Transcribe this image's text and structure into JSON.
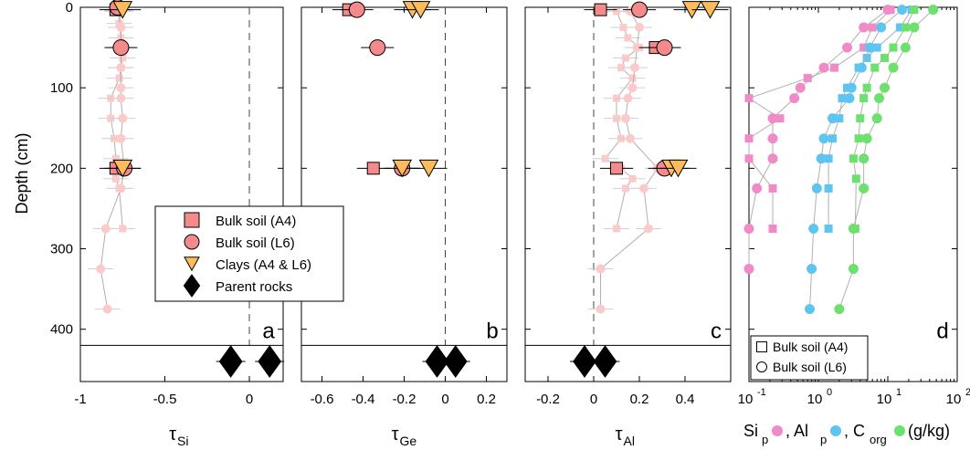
{
  "figure": {
    "ylabel": "Depth (cm)",
    "y_ticks": [
      0,
      100,
      200,
      300,
      400
    ],
    "colors": {
      "bulk_a4": "#f48a8c",
      "bulk_l6": "#f48a8c",
      "clays": "#fcbc5c",
      "profile_light": "#fbcaca",
      "si_p": "#f08ac8",
      "al_p": "#5ec4f0",
      "c_org": "#6ee06e",
      "gray_line": "#b0b0b0"
    }
  },
  "chart_data": [
    {
      "type": "scatter",
      "panel_letter": "a",
      "xlabel_symbol": "τ",
      "xlabel_sub": "Si",
      "xlim": [
        -1,
        0.2
      ],
      "ylim": [
        0,
        465
      ],
      "x_ticks": [
        -1,
        -0.5,
        0
      ],
      "x_tick_labels": [
        "-1",
        "-0.5",
        "0"
      ],
      "reference_x": 0,
      "bedrock_line_depth": 420,
      "profile_a4": [
        {
          "x": -0.76,
          "y": 5
        },
        {
          "x": -0.77,
          "y": 20
        },
        {
          "x": -0.76,
          "y": 38
        },
        {
          "x": -0.76,
          "y": 50
        },
        {
          "x": -0.75,
          "y": 63
        },
        {
          "x": -0.76,
          "y": 75
        },
        {
          "x": -0.77,
          "y": 88
        },
        {
          "x": -0.82,
          "y": 113
        },
        {
          "x": -0.82,
          "y": 138
        },
        {
          "x": -0.8,
          "y": 163
        },
        {
          "x": -0.79,
          "y": 188
        },
        {
          "x": -0.79,
          "y": 200
        },
        {
          "x": -0.79,
          "y": 213
        },
        {
          "x": -0.77,
          "y": 225
        },
        {
          "x": -0.75,
          "y": 275
        }
      ],
      "profile_l6": [
        {
          "x": -0.78,
          "y": 5
        },
        {
          "x": -0.76,
          "y": 25
        },
        {
          "x": -0.76,
          "y": 50
        },
        {
          "x": -0.76,
          "y": 75
        },
        {
          "x": -0.76,
          "y": 100
        },
        {
          "x": -0.76,
          "y": 113
        },
        {
          "x": -0.75,
          "y": 138
        },
        {
          "x": -0.76,
          "y": 163
        },
        {
          "x": -0.74,
          "y": 200
        },
        {
          "x": -0.76,
          "y": 225
        },
        {
          "x": -0.85,
          "y": 275
        },
        {
          "x": -0.88,
          "y": 325
        },
        {
          "x": -0.84,
          "y": 375
        }
      ],
      "bulk_a4": [
        {
          "x": -0.79,
          "y": 3
        },
        {
          "x": -0.79,
          "y": 200
        }
      ],
      "bulk_l6": [
        {
          "x": -0.78,
          "y": 0
        },
        {
          "x": -0.76,
          "y": 50
        },
        {
          "x": -0.74,
          "y": 200
        }
      ],
      "clays": [
        {
          "x": -0.75,
          "y": 3
        },
        {
          "x": -0.75,
          "y": 200
        }
      ],
      "parent_rocks": [
        {
          "x": -0.11,
          "y": 440
        },
        {
          "x": 0.12,
          "y": 440
        }
      ]
    },
    {
      "type": "scatter",
      "panel_letter": "b",
      "xlabel_symbol": "τ",
      "xlabel_sub": "Ge",
      "xlim": [
        -0.7,
        0.3
      ],
      "ylim": [
        0,
        465
      ],
      "x_ticks": [
        -0.6,
        -0.4,
        -0.2,
        0,
        0.2
      ],
      "x_tick_labels": [
        "-0.6",
        "-0.4",
        "-0.2",
        "0",
        "0.2"
      ],
      "reference_x": 0,
      "bedrock_line_depth": 420,
      "bulk_a4": [
        {
          "x": -0.47,
          "y": 3
        },
        {
          "x": -0.35,
          "y": 200
        }
      ],
      "bulk_l6": [
        {
          "x": -0.43,
          "y": 3
        },
        {
          "x": -0.33,
          "y": 50
        },
        {
          "x": -0.21,
          "y": 200
        }
      ],
      "clays": [
        {
          "x": -0.16,
          "y": 3
        },
        {
          "x": -0.12,
          "y": 3
        },
        {
          "x": -0.21,
          "y": 200
        },
        {
          "x": -0.08,
          "y": 200
        }
      ],
      "parent_rocks": [
        {
          "x": -0.04,
          "y": 440
        },
        {
          "x": 0.05,
          "y": 440
        }
      ]
    },
    {
      "type": "scatter",
      "panel_letter": "c",
      "xlabel_symbol": "τ",
      "xlabel_sub": "Al",
      "xlim": [
        -0.3,
        0.6
      ],
      "ylim": [
        0,
        465
      ],
      "x_ticks": [
        -0.2,
        0,
        0.2,
        0.4
      ],
      "x_tick_labels": [
        "-0.2",
        "0",
        "0.2",
        "0.4"
      ],
      "reference_x": 0,
      "bedrock_line_depth": 420,
      "profile_a4": [
        {
          "x": 0.1,
          "y": 5
        },
        {
          "x": 0.13,
          "y": 25
        },
        {
          "x": 0.15,
          "y": 38
        },
        {
          "x": 0.2,
          "y": 50
        },
        {
          "x": 0.14,
          "y": 63
        },
        {
          "x": 0.12,
          "y": 75
        },
        {
          "x": 0.17,
          "y": 88
        },
        {
          "x": 0.1,
          "y": 113
        },
        {
          "x": 0.1,
          "y": 138
        },
        {
          "x": 0.12,
          "y": 163
        },
        {
          "x": 0.05,
          "y": 188
        },
        {
          "x": 0.12,
          "y": 200
        },
        {
          "x": 0.17,
          "y": 213
        },
        {
          "x": 0.14,
          "y": 225
        },
        {
          "x": 0.1,
          "y": 275
        }
      ],
      "profile_l6": [
        {
          "x": 0.16,
          "y": 5
        },
        {
          "x": 0.2,
          "y": 25
        },
        {
          "x": 0.19,
          "y": 50
        },
        {
          "x": 0.18,
          "y": 75
        },
        {
          "x": 0.17,
          "y": 100
        },
        {
          "x": 0.15,
          "y": 113
        },
        {
          "x": 0.14,
          "y": 138
        },
        {
          "x": 0.16,
          "y": 163
        },
        {
          "x": 0.28,
          "y": 200
        },
        {
          "x": 0.22,
          "y": 225
        },
        {
          "x": 0.24,
          "y": 275
        },
        {
          "x": 0.03,
          "y": 325
        },
        {
          "x": 0.03,
          "y": 375
        }
      ],
      "bulk_a4": [
        {
          "x": 0.03,
          "y": 3
        },
        {
          "x": 0.27,
          "y": 50
        },
        {
          "x": 0.1,
          "y": 200
        }
      ],
      "bulk_l6": [
        {
          "x": 0.2,
          "y": 3
        },
        {
          "x": 0.31,
          "y": 50
        },
        {
          "x": 0.31,
          "y": 200
        }
      ],
      "clays": [
        {
          "x": 0.43,
          "y": 3
        },
        {
          "x": 0.51,
          "y": 3
        },
        {
          "x": 0.34,
          "y": 200
        },
        {
          "x": 0.37,
          "y": 200
        }
      ],
      "parent_rocks": [
        {
          "x": -0.04,
          "y": 440
        },
        {
          "x": 0.05,
          "y": 440
        }
      ]
    },
    {
      "type": "scatter",
      "panel_letter": "d",
      "x_scale": "log",
      "xlim": [
        0.1,
        100
      ],
      "ylim": [
        0,
        465
      ],
      "x_ticks": [
        0.1,
        1,
        10,
        100
      ],
      "x_tick_labels": [
        {
          "base": "10",
          "exp": "-1"
        },
        {
          "base": "10",
          "exp": "0"
        },
        {
          "base": "10",
          "exp": "1"
        },
        {
          "base": "10",
          "exp": "2"
        }
      ],
      "xlabel_parts": [
        {
          "text": "Si",
          "sub": "p",
          "dot": "si_p"
        },
        {
          "text": ", Al",
          "sub": "p",
          "dot": "al_p"
        },
        {
          "text": ", C",
          "sub": "org",
          "dot": "c_org"
        },
        {
          "text": " (g/kg)"
        }
      ],
      "legend": [
        {
          "marker": "square",
          "label": "Bulk soil (A4)"
        },
        {
          "marker": "circle",
          "label": "Bulk soil (L6)"
        }
      ],
      "series": [
        {
          "name": "Si_p",
          "profile": "A4",
          "marker": "square",
          "color": "si_p",
          "points": [
            [
              11,
              3
            ],
            [
              6,
              25
            ],
            [
              4.5,
              50
            ],
            [
              1.7,
              75
            ],
            [
              0.7,
              88
            ],
            [
              0.1,
              113
            ],
            [
              0.28,
              138
            ],
            [
              0.1,
              163
            ],
            [
              0.1,
              188
            ],
            [
              0.22,
              225
            ],
            [
              0.22,
              275
            ]
          ]
        },
        {
          "name": "Si_p",
          "profile": "L6",
          "marker": "circle",
          "color": "si_p",
          "points": [
            [
              10,
              3
            ],
            [
              4.5,
              25
            ],
            [
              2.6,
              50
            ],
            [
              1.2,
              75
            ],
            [
              0.55,
              100
            ],
            [
              0.45,
              113
            ],
            [
              0.22,
              138
            ],
            [
              0.22,
              163
            ],
            [
              0.22,
              188
            ],
            [
              0.13,
              225
            ],
            [
              0.1,
              275
            ],
            [
              0.1,
              325
            ]
          ]
        },
        {
          "name": "Al_p",
          "profile": "A4",
          "marker": "square",
          "color": "al_p",
          "points": [
            [
              22,
              3
            ],
            [
              15,
              25
            ],
            [
              7,
              50
            ],
            [
              5,
              63
            ],
            [
              3.8,
              75
            ],
            [
              2.6,
              100
            ],
            [
              2.2,
              113
            ],
            [
              2,
              138
            ],
            [
              1.6,
              163
            ],
            [
              1.4,
              188
            ],
            [
              1.4,
              225
            ],
            [
              1.4,
              275
            ]
          ]
        },
        {
          "name": "Al_p",
          "profile": "L6",
          "marker": "circle",
          "color": "al_p",
          "points": [
            [
              16,
              3
            ],
            [
              8,
              25
            ],
            [
              5.5,
              50
            ],
            [
              4.2,
              75
            ],
            [
              3,
              100
            ],
            [
              2.8,
              113
            ],
            [
              1.6,
              138
            ],
            [
              1.2,
              163
            ],
            [
              1.1,
              188
            ],
            [
              0.95,
              225
            ],
            [
              0.85,
              275
            ],
            [
              0.8,
              325
            ],
            [
              0.75,
              375
            ]
          ]
        },
        {
          "name": "C_org",
          "profile": "A4",
          "marker": "square",
          "color": "c_org",
          "points": [
            [
              24,
              3
            ],
            [
              18,
              25
            ],
            [
              12,
              50
            ],
            [
              9,
              63
            ],
            [
              6.5,
              75
            ],
            [
              5,
              100
            ],
            [
              4.5,
              113
            ],
            [
              4,
              138
            ],
            [
              3.8,
              163
            ],
            [
              3.2,
              188
            ],
            [
              3.5,
              213
            ],
            [
              3.4,
              275
            ]
          ]
        },
        {
          "name": "C_org",
          "profile": "L6",
          "marker": "circle",
          "color": "c_org",
          "points": [
            [
              45,
              3
            ],
            [
              24,
              25
            ],
            [
              18,
              50
            ],
            [
              12,
              75
            ],
            [
              9,
              100
            ],
            [
              7.5,
              113
            ],
            [
              7,
              138
            ],
            [
              5,
              163
            ],
            [
              4.5,
              188
            ],
            [
              4.5,
              225
            ],
            [
              3.2,
              275
            ],
            [
              3.2,
              325
            ],
            [
              2,
              375
            ]
          ]
        }
      ]
    }
  ],
  "legend_main": [
    {
      "marker": "square",
      "color": "bulk_a4",
      "label": "Bulk soil (A4)"
    },
    {
      "marker": "circle",
      "color": "bulk_l6",
      "label": "Bulk soil (L6)"
    },
    {
      "marker": "triangle",
      "color": "clays",
      "label": "Clays (A4 & L6)"
    },
    {
      "marker": "diamond",
      "color": "black",
      "label": "Parent rocks"
    }
  ]
}
